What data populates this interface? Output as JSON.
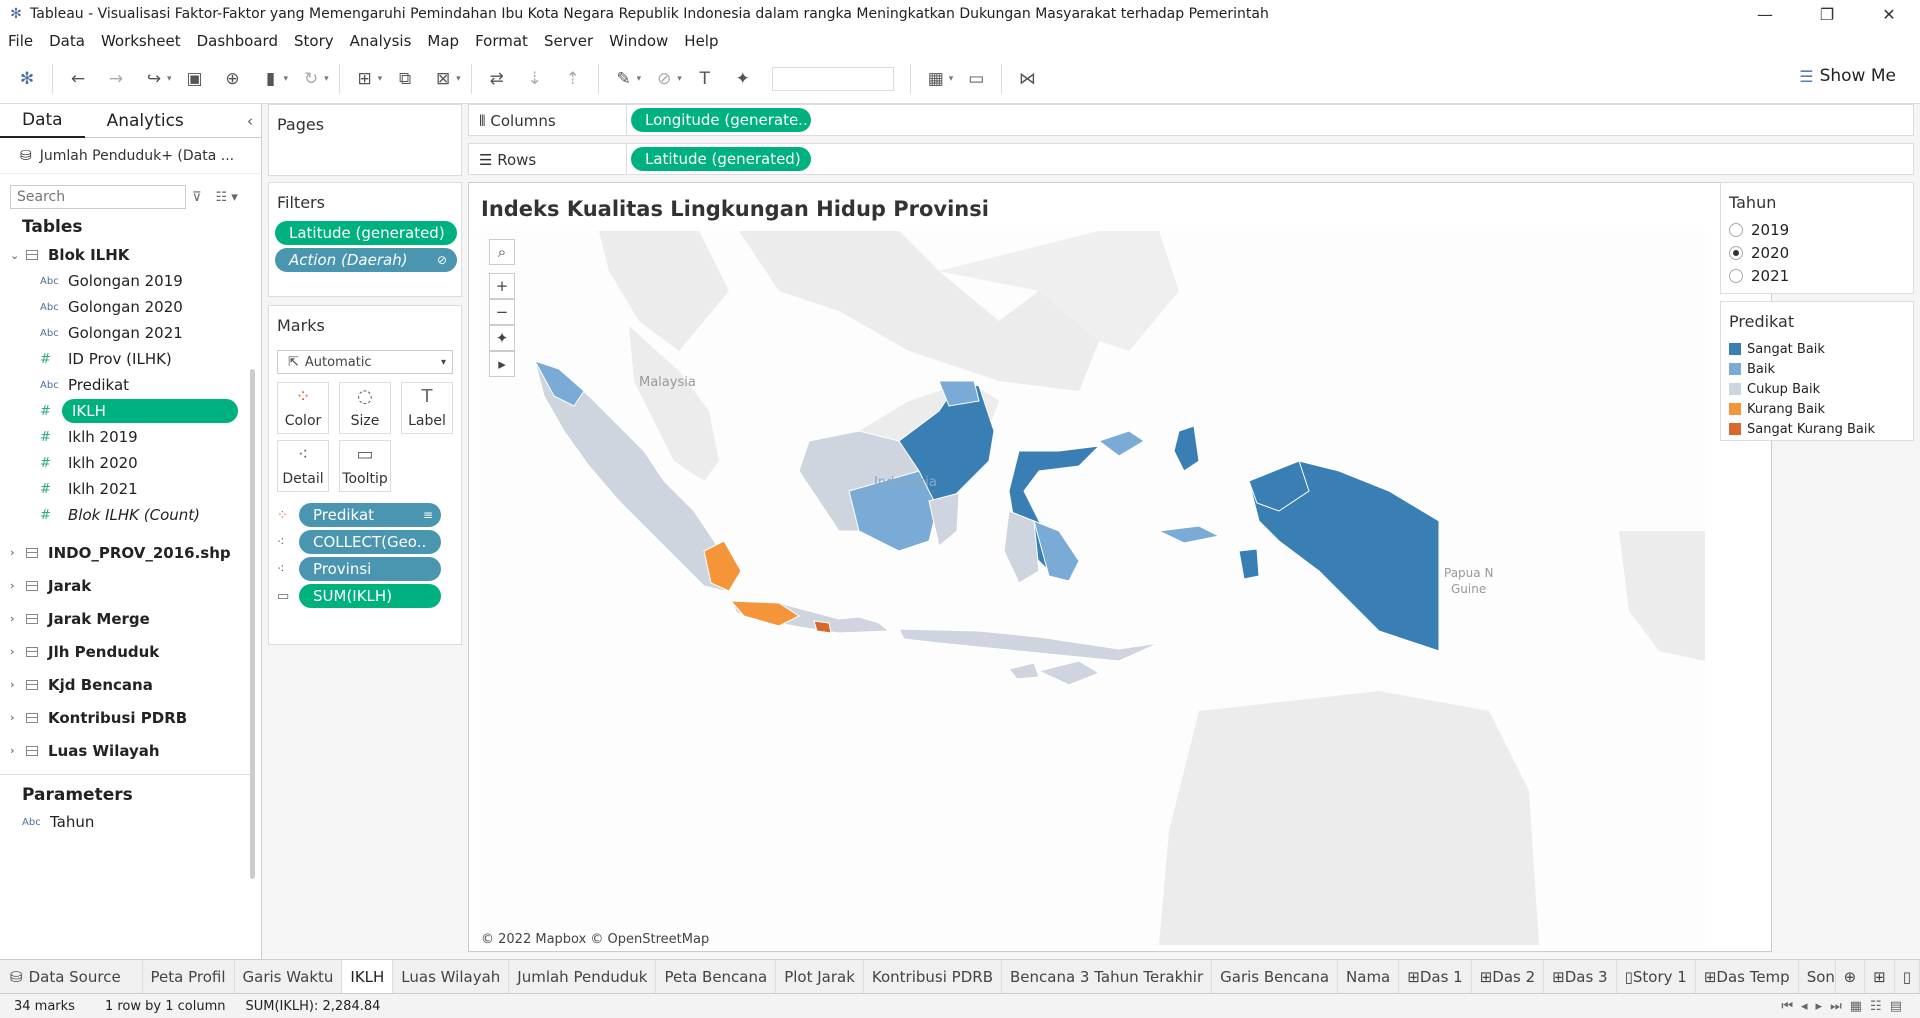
{
  "window": {
    "title": "Tableau - Visualisasi Faktor-Faktor yang Memengaruhi Pemindahan Ibu Kota Negara Republik Indonesia dalam rangka Meningkatkan Dukungan Masyarakat terhadap Pemerintah"
  },
  "menu": [
    "File",
    "Data",
    "Worksheet",
    "Dashboard",
    "Story",
    "Analysis",
    "Map",
    "Format",
    "Server",
    "Window",
    "Help"
  ],
  "toolbar": {
    "show_me": "Show Me"
  },
  "datapane": {
    "tab_data": "Data",
    "tab_analytics": "Analytics",
    "source": "Jumlah Penduduk+ (Data ...",
    "search_placeholder": "Search",
    "tables_heading": "Tables",
    "blok_ilhk": "Blok ILHK",
    "fields": [
      {
        "type": "Abc",
        "name": "Golongan 2019"
      },
      {
        "type": "Abc",
        "name": "Golongan 2020"
      },
      {
        "type": "Abc",
        "name": "Golongan 2021"
      },
      {
        "type": "#",
        "name": "ID Prov (ILHK)"
      },
      {
        "type": "Abc",
        "name": "Predikat"
      },
      {
        "type": "#",
        "name": "IKLH"
      },
      {
        "type": "#",
        "name": "Iklh 2019"
      },
      {
        "type": "#",
        "name": "Iklh 2020"
      },
      {
        "type": "#",
        "name": "Iklh 2021"
      },
      {
        "type": "#",
        "name": "Blok ILHK (Count)"
      }
    ],
    "tables": [
      "INDO_PROV_2016.shp",
      "Jarak",
      "Jarak Merge",
      "Jlh Penduduk",
      "Kjd Bencana",
      "Kontribusi PDRB",
      "Luas Wilayah"
    ],
    "parameters_heading": "Parameters",
    "param": {
      "type": "Abc",
      "name": "Tahun"
    }
  },
  "shelves": {
    "pages": "Pages",
    "filters": "Filters",
    "filter_pills": [
      "Latitude (generated)",
      "Action (Daerah)"
    ],
    "marks": "Marks",
    "marks_type": "Automatic",
    "mark_buttons": [
      "Color",
      "Size",
      "Label",
      "Detail",
      "Tooltip"
    ],
    "mark_pills": [
      "Predikat",
      "COLLECT(Geo..",
      "Provinsi",
      "SUM(IKLH)"
    ],
    "columns_label": "Columns",
    "columns_pill": "Longitude (generate..",
    "rows_label": "Rows",
    "rows_pill": "Latitude (generated)"
  },
  "view": {
    "title": "Indeks Kualitas Lingkungan Hidup Provinsi",
    "attribution": "© 2022 Mapbox © OpenStreetMap",
    "map_labels": {
      "malaysia": "Malaysia",
      "indonesia": "Indonesia",
      "png1": "Papua N",
      "png2": "Guine"
    }
  },
  "legend_tahun": {
    "title": "Tahun",
    "options": [
      "2019",
      "2020",
      "2021"
    ],
    "selected": "2020"
  },
  "legend_predikat": {
    "title": "Predikat",
    "items": [
      {
        "label": "Sangat Baik",
        "color": "#3a7fb4"
      },
      {
        "label": "Baik",
        "color": "#7aabd6"
      },
      {
        "label": "Cukup Baik",
        "color": "#cfd5de"
      },
      {
        "label": "Kurang Baik",
        "color": "#f49539"
      },
      {
        "label": "Sangat Kurang Baik",
        "color": "#d9692a"
      }
    ]
  },
  "sheet_tabs": [
    "Data Source",
    "Peta Profil",
    "Garis Waktu",
    "IKLH",
    "Luas Wilayah",
    "Jumlah Penduduk",
    "Peta Bencana",
    "Plot Jarak",
    "Kontribusi PDRB",
    "Bencana 3 Tahun Terakhir",
    "Garis Bencana",
    "Nama",
    "Das 1",
    "Das 2",
    "Das 3",
    "Story 1",
    "Das Temp",
    "Son c"
  ],
  "active_tab": "IKLH",
  "status": {
    "marks": "34 marks",
    "rows": "1 row by 1 column",
    "sum": "SUM(IKLH): 2,284.84"
  }
}
